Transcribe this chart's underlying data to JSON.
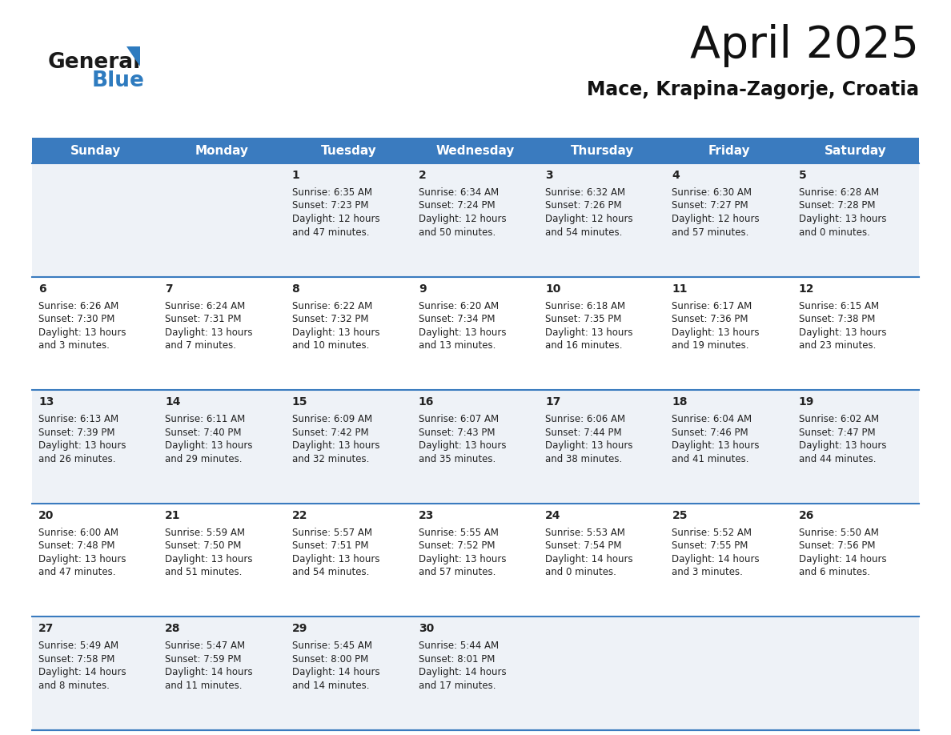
{
  "title": "April 2025",
  "subtitle": "Mace, Krapina-Zagorje, Croatia",
  "header_bg": "#3a7bbf",
  "header_text": "#ffffff",
  "row_bg_even": "#eef2f7",
  "row_bg_odd": "#ffffff",
  "cell_text_color": "#222222",
  "day_num_color": "#222222",
  "grid_line_color": "#3a7bbf",
  "logo_blue_color": "#2e7bbf",
  "day_headers": [
    "Sunday",
    "Monday",
    "Tuesday",
    "Wednesday",
    "Thursday",
    "Friday",
    "Saturday"
  ],
  "days": [
    {
      "day": null,
      "sunrise": null,
      "sunset": null,
      "daylight_l1": null,
      "daylight_l2": null
    },
    {
      "day": null,
      "sunrise": null,
      "sunset": null,
      "daylight_l1": null,
      "daylight_l2": null
    },
    {
      "day": "1",
      "sunrise": "6:35 AM",
      "sunset": "7:23 PM",
      "daylight_l1": "Daylight: 12 hours",
      "daylight_l2": "and 47 minutes."
    },
    {
      "day": "2",
      "sunrise": "6:34 AM",
      "sunset": "7:24 PM",
      "daylight_l1": "Daylight: 12 hours",
      "daylight_l2": "and 50 minutes."
    },
    {
      "day": "3",
      "sunrise": "6:32 AM",
      "sunset": "7:26 PM",
      "daylight_l1": "Daylight: 12 hours",
      "daylight_l2": "and 54 minutes."
    },
    {
      "day": "4",
      "sunrise": "6:30 AM",
      "sunset": "7:27 PM",
      "daylight_l1": "Daylight: 12 hours",
      "daylight_l2": "and 57 minutes."
    },
    {
      "day": "5",
      "sunrise": "6:28 AM",
      "sunset": "7:28 PM",
      "daylight_l1": "Daylight: 13 hours",
      "daylight_l2": "and 0 minutes."
    },
    {
      "day": "6",
      "sunrise": "6:26 AM",
      "sunset": "7:30 PM",
      "daylight_l1": "Daylight: 13 hours",
      "daylight_l2": "and 3 minutes."
    },
    {
      "day": "7",
      "sunrise": "6:24 AM",
      "sunset": "7:31 PM",
      "daylight_l1": "Daylight: 13 hours",
      "daylight_l2": "and 7 minutes."
    },
    {
      "day": "8",
      "sunrise": "6:22 AM",
      "sunset": "7:32 PM",
      "daylight_l1": "Daylight: 13 hours",
      "daylight_l2": "and 10 minutes."
    },
    {
      "day": "9",
      "sunrise": "6:20 AM",
      "sunset": "7:34 PM",
      "daylight_l1": "Daylight: 13 hours",
      "daylight_l2": "and 13 minutes."
    },
    {
      "day": "10",
      "sunrise": "6:18 AM",
      "sunset": "7:35 PM",
      "daylight_l1": "Daylight: 13 hours",
      "daylight_l2": "and 16 minutes."
    },
    {
      "day": "11",
      "sunrise": "6:17 AM",
      "sunset": "7:36 PM",
      "daylight_l1": "Daylight: 13 hours",
      "daylight_l2": "and 19 minutes."
    },
    {
      "day": "12",
      "sunrise": "6:15 AM",
      "sunset": "7:38 PM",
      "daylight_l1": "Daylight: 13 hours",
      "daylight_l2": "and 23 minutes."
    },
    {
      "day": "13",
      "sunrise": "6:13 AM",
      "sunset": "7:39 PM",
      "daylight_l1": "Daylight: 13 hours",
      "daylight_l2": "and 26 minutes."
    },
    {
      "day": "14",
      "sunrise": "6:11 AM",
      "sunset": "7:40 PM",
      "daylight_l1": "Daylight: 13 hours",
      "daylight_l2": "and 29 minutes."
    },
    {
      "day": "15",
      "sunrise": "6:09 AM",
      "sunset": "7:42 PM",
      "daylight_l1": "Daylight: 13 hours",
      "daylight_l2": "and 32 minutes."
    },
    {
      "day": "16",
      "sunrise": "6:07 AM",
      "sunset": "7:43 PM",
      "daylight_l1": "Daylight: 13 hours",
      "daylight_l2": "and 35 minutes."
    },
    {
      "day": "17",
      "sunrise": "6:06 AM",
      "sunset": "7:44 PM",
      "daylight_l1": "Daylight: 13 hours",
      "daylight_l2": "and 38 minutes."
    },
    {
      "day": "18",
      "sunrise": "6:04 AM",
      "sunset": "7:46 PM",
      "daylight_l1": "Daylight: 13 hours",
      "daylight_l2": "and 41 minutes."
    },
    {
      "day": "19",
      "sunrise": "6:02 AM",
      "sunset": "7:47 PM",
      "daylight_l1": "Daylight: 13 hours",
      "daylight_l2": "and 44 minutes."
    },
    {
      "day": "20",
      "sunrise": "6:00 AM",
      "sunset": "7:48 PM",
      "daylight_l1": "Daylight: 13 hours",
      "daylight_l2": "and 47 minutes."
    },
    {
      "day": "21",
      "sunrise": "5:59 AM",
      "sunset": "7:50 PM",
      "daylight_l1": "Daylight: 13 hours",
      "daylight_l2": "and 51 minutes."
    },
    {
      "day": "22",
      "sunrise": "5:57 AM",
      "sunset": "7:51 PM",
      "daylight_l1": "Daylight: 13 hours",
      "daylight_l2": "and 54 minutes."
    },
    {
      "day": "23",
      "sunrise": "5:55 AM",
      "sunset": "7:52 PM",
      "daylight_l1": "Daylight: 13 hours",
      "daylight_l2": "and 57 minutes."
    },
    {
      "day": "24",
      "sunrise": "5:53 AM",
      "sunset": "7:54 PM",
      "daylight_l1": "Daylight: 14 hours",
      "daylight_l2": "and 0 minutes."
    },
    {
      "day": "25",
      "sunrise": "5:52 AM",
      "sunset": "7:55 PM",
      "daylight_l1": "Daylight: 14 hours",
      "daylight_l2": "and 3 minutes."
    },
    {
      "day": "26",
      "sunrise": "5:50 AM",
      "sunset": "7:56 PM",
      "daylight_l1": "Daylight: 14 hours",
      "daylight_l2": "and 6 minutes."
    },
    {
      "day": "27",
      "sunrise": "5:49 AM",
      "sunset": "7:58 PM",
      "daylight_l1": "Daylight: 14 hours",
      "daylight_l2": "and 8 minutes."
    },
    {
      "day": "28",
      "sunrise": "5:47 AM",
      "sunset": "7:59 PM",
      "daylight_l1": "Daylight: 14 hours",
      "daylight_l2": "and 11 minutes."
    },
    {
      "day": "29",
      "sunrise": "5:45 AM",
      "sunset": "8:00 PM",
      "daylight_l1": "Daylight: 14 hours",
      "daylight_l2": "and 14 minutes."
    },
    {
      "day": "30",
      "sunrise": "5:44 AM",
      "sunset": "8:01 PM",
      "daylight_l1": "Daylight: 14 hours",
      "daylight_l2": "and 17 minutes."
    },
    {
      "day": null,
      "sunrise": null,
      "sunset": null,
      "daylight_l1": null,
      "daylight_l2": null
    },
    {
      "day": null,
      "sunrise": null,
      "sunset": null,
      "daylight_l1": null,
      "daylight_l2": null
    },
    {
      "day": null,
      "sunrise": null,
      "sunset": null,
      "daylight_l1": null,
      "daylight_l2": null
    },
    {
      "day": null,
      "sunrise": null,
      "sunset": null,
      "daylight_l1": null,
      "daylight_l2": null
    }
  ]
}
